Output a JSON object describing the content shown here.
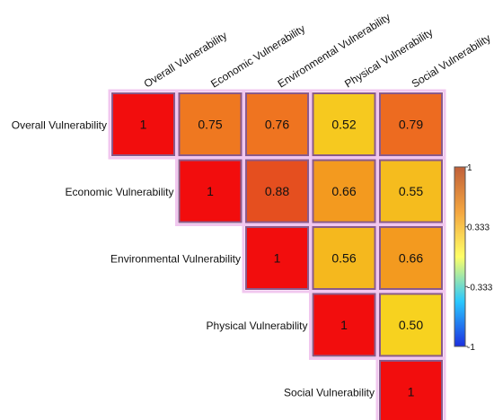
{
  "chart_data": {
    "type": "heatmap",
    "variables": [
      "Overall Vulnerability",
      "Economic Vulnerability",
      "Environmental Vulnerability",
      "Physical Vulnerability",
      "Social Vulnerability"
    ],
    "matrix": [
      [
        1,
        0.75,
        0.76,
        0.52,
        0.79
      ],
      [
        null,
        1,
        0.88,
        0.66,
        0.55
      ],
      [
        null,
        null,
        1,
        0.56,
        0.66
      ],
      [
        null,
        null,
        null,
        1,
        0.5
      ],
      [
        null,
        null,
        null,
        null,
        1
      ]
    ],
    "cell_labels": [
      [
        "1",
        "0.75",
        "0.76",
        "0.52",
        "0.79"
      ],
      [
        "",
        "1",
        "0.88",
        "0.66",
        "0.55"
      ],
      [
        "",
        "",
        "1",
        "0.56",
        "0.66"
      ],
      [
        "",
        "",
        "",
        "1",
        "0.50"
      ],
      [
        "",
        "",
        "",
        "",
        "1"
      ]
    ],
    "triangle": "upper",
    "colorbar": {
      "range": [
        -1,
        1
      ],
      "tick_values": [
        1,
        0.333,
        -0.333,
        -1
      ],
      "tick_labels": [
        "1",
        "0.333",
        "-0.333",
        "-1"
      ],
      "colors": [
        "#1c2fe0",
        "#29c8ff",
        "#ffff66",
        "#f4a640",
        "#c0603a"
      ],
      "placement": "right"
    },
    "cell_color_ramp": [
      {
        "value": 0.5,
        "color": "#f7d21f"
      },
      {
        "value": 0.56,
        "color": "#f5b81e"
      },
      {
        "value": 0.66,
        "color": "#f39a1f"
      },
      {
        "value": 0.76,
        "color": "#ef7420"
      },
      {
        "value": 0.88,
        "color": "#e54f1f"
      },
      {
        "value": 1.0,
        "color": "#f20d0d"
      }
    ],
    "frame_color": "#8a5a8a"
  }
}
